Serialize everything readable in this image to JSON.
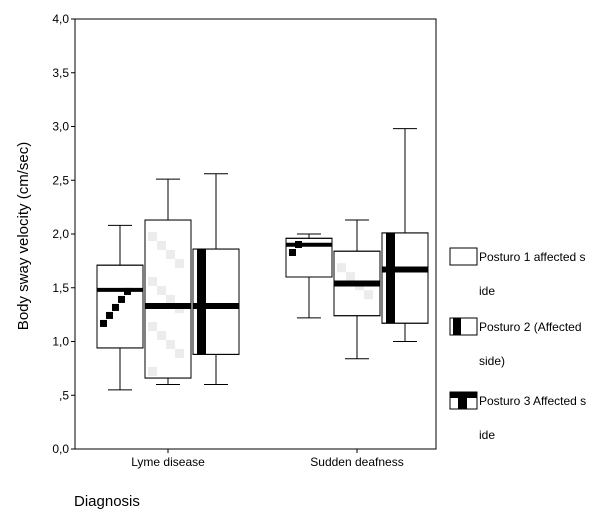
{
  "chart_data": {
    "type": "boxplot",
    "title": "",
    "xlabel": "Diagnosis",
    "ylabel": "Body sway velocity (cm/sec)",
    "ylim": [
      0,
      4
    ],
    "yticks": [
      {
        "value": 0,
        "label": "0,0"
      },
      {
        "value": 0.5,
        "label": ",5"
      },
      {
        "value": 1.0,
        "label": "1,0"
      },
      {
        "value": 1.5,
        "label": "1,5"
      },
      {
        "value": 2.0,
        "label": "2,0"
      },
      {
        "value": 2.5,
        "label": "2,5"
      },
      {
        "value": 3.0,
        "label": "3,0"
      },
      {
        "value": 3.5,
        "label": "3,5"
      },
      {
        "value": 4.0,
        "label": "4,0"
      }
    ],
    "categories": [
      "Lyme disease",
      "Sudden deafness"
    ],
    "grid": false,
    "legend_position": "right",
    "series": [
      {
        "name": "Posturo 1 affected side",
        "legend_lines": [
          "Posturo 1 affected s",
          "ide"
        ],
        "pattern": "diagonal-steps",
        "boxes": [
          {
            "min": 0.55,
            "q1": 0.94,
            "median": 1.48,
            "q3": 1.71,
            "max": 2.08
          },
          {
            "min": 1.22,
            "q1": 1.6,
            "median": 1.9,
            "q3": 1.96,
            "max": 2.0
          }
        ]
      },
      {
        "name": "Posturo 2 (Affected side)",
        "legend_lines": [
          "Posturo 2 (Affected",
          "side)"
        ],
        "pattern": "light-check",
        "boxes": [
          {
            "min": 0.6,
            "q1": 0.66,
            "median": 1.33,
            "q3": 2.13,
            "max": 2.51
          },
          {
            "min": 0.84,
            "q1": 1.24,
            "median": 1.54,
            "q3": 1.84,
            "max": 2.13
          }
        ]
      },
      {
        "name": "Posturo 3 Affected side",
        "legend_lines": [
          "Posturo 3 Affected s",
          "ide"
        ],
        "pattern": "cross-bars",
        "boxes": [
          {
            "min": 0.6,
            "q1": 0.88,
            "median": 1.33,
            "q3": 1.86,
            "max": 2.56
          },
          {
            "min": 1.0,
            "q1": 1.17,
            "median": 1.67,
            "q3": 2.01,
            "max": 2.98
          }
        ]
      }
    ]
  }
}
